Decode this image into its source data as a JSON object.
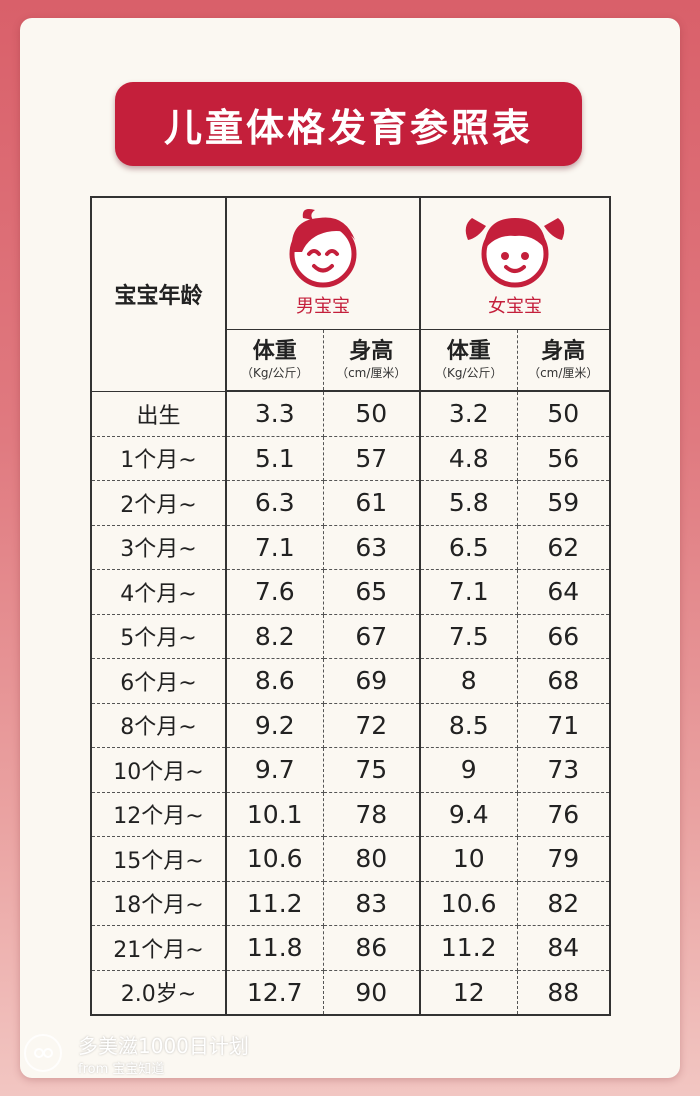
{
  "title": "儿童体格发育参照表",
  "table": {
    "age_header": "宝宝年龄",
    "boy_label": "男宝宝",
    "girl_label": "女宝宝",
    "columns": [
      {
        "label": "体重",
        "unit": "（Kg/公斤）"
      },
      {
        "label": "身高",
        "unit": "（cm/厘米）"
      },
      {
        "label": "体重",
        "unit": "（Kg/公斤）"
      },
      {
        "label": "身高",
        "unit": "（cm/厘米）"
      }
    ],
    "rows": [
      {
        "age": "出生",
        "boy_weight": "3.3",
        "boy_height": "50",
        "girl_weight": "3.2",
        "girl_height": "50"
      },
      {
        "age": "1个月~",
        "boy_weight": "5.1",
        "boy_height": "57",
        "girl_weight": "4.8",
        "girl_height": "56"
      },
      {
        "age": "2个月~",
        "boy_weight": "6.3",
        "boy_height": "61",
        "girl_weight": "5.8",
        "girl_height": "59"
      },
      {
        "age": "3个月~",
        "boy_weight": "7.1",
        "boy_height": "63",
        "girl_weight": "6.5",
        "girl_height": "62"
      },
      {
        "age": "4个月~",
        "boy_weight": "7.6",
        "boy_height": "65",
        "girl_weight": "7.1",
        "girl_height": "64"
      },
      {
        "age": "5个月~",
        "boy_weight": "8.2",
        "boy_height": "67",
        "girl_weight": "7.5",
        "girl_height": "66"
      },
      {
        "age": "6个月~",
        "boy_weight": "8.6",
        "boy_height": "69",
        "girl_weight": "8",
        "girl_height": "68"
      },
      {
        "age": "8个月~",
        "boy_weight": "9.2",
        "boy_height": "72",
        "girl_weight": "8.5",
        "girl_height": "71"
      },
      {
        "age": "10个月~",
        "boy_weight": "9.7",
        "boy_height": "75",
        "girl_weight": "9",
        "girl_height": "73"
      },
      {
        "age": "12个月~",
        "boy_weight": "10.1",
        "boy_height": "78",
        "girl_weight": "9.4",
        "girl_height": "76"
      },
      {
        "age": "15个月~",
        "boy_weight": "10.6",
        "boy_height": "80",
        "girl_weight": "10",
        "girl_height": "79"
      },
      {
        "age": "18个月~",
        "boy_weight": "11.2",
        "boy_height": "83",
        "girl_weight": "10.6",
        "girl_height": "82"
      },
      {
        "age": "21个月~",
        "boy_weight": "11.8",
        "boy_height": "86",
        "girl_weight": "11.2",
        "girl_height": "84"
      },
      {
        "age": "2.0岁~",
        "boy_weight": "12.7",
        "boy_height": "90",
        "girl_weight": "12",
        "girl_height": "88"
      }
    ]
  },
  "footer": {
    "brand": "多美滋1000日计划",
    "from": "from 宝宝知道"
  },
  "colors": {
    "accent": "#c41f3b",
    "card": "#fbf8f2",
    "background_top": "#d9606a",
    "background_bottom": "#f2c6c2"
  },
  "icons": {
    "boy": "boy-face-icon",
    "girl": "girl-face-icon",
    "logo": "brand-logo-icon"
  }
}
